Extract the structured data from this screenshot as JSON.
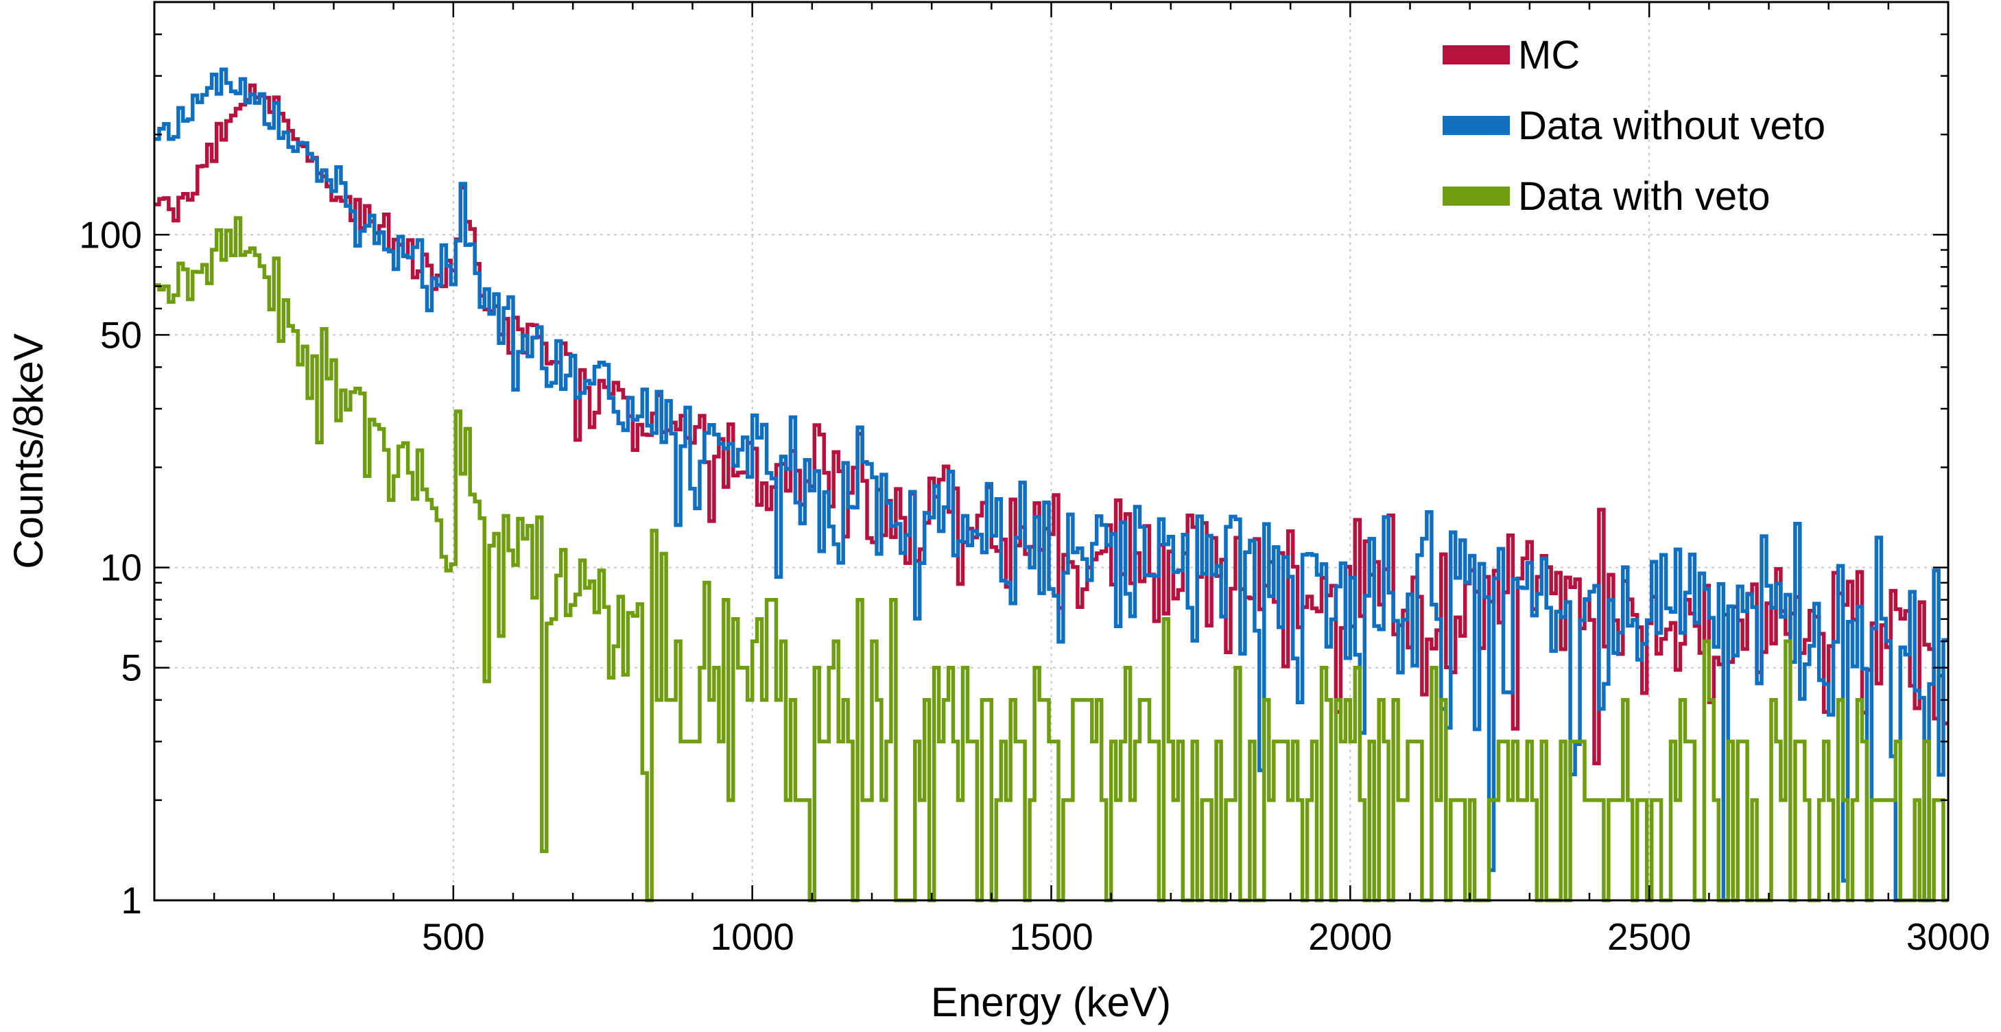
{
  "chart_data": {
    "type": "line",
    "style": "step histogram",
    "xlabel": "Energy (keV)",
    "ylabel": "Counts/8keV",
    "xlim": [
      0,
      3000
    ],
    "ylim": [
      1,
      500
    ],
    "y_scale": "log",
    "grid": true,
    "legend_position": "top-right",
    "bin_width_keV": 8,
    "x_ticks": [
      500,
      1000,
      1500,
      2000,
      2500,
      3000
    ],
    "x_tick_labels": [
      "500",
      "1000",
      "1500",
      "2000",
      "2500",
      "3000"
    ],
    "y_ticks": [
      1,
      5,
      10,
      50,
      100
    ],
    "y_tick_labels": [
      "1",
      "5",
      "10",
      "50",
      "100"
    ],
    "series": [
      {
        "name": "MC",
        "color": "#b5123e",
        "x": [
          0,
          50,
          100,
          150,
          200,
          250,
          300,
          350,
          400,
          450,
          500,
          515,
          550,
          600,
          700,
          800,
          900,
          1000,
          1100,
          1200,
          1300,
          1400,
          1500,
          1600,
          1700,
          1800,
          1900,
          2000,
          2200,
          2400,
          2600,
          2800,
          3000
        ],
        "y": [
          115,
          130,
          185,
          270,
          240,
          180,
          140,
          115,
          95,
          82,
          72,
          145,
          62,
          50,
          38,
          28,
          24,
          21,
          19,
          17,
          15,
          13.5,
          12,
          11,
          10,
          9.5,
          9,
          8.5,
          8,
          7.3,
          6.8,
          6.3,
          5.9
        ]
      },
      {
        "name": "Data without veto",
        "color": "#0f6fc0",
        "x": [
          0,
          30,
          60,
          100,
          130,
          150,
          200,
          250,
          300,
          350,
          400,
          450,
          500,
          515,
          550,
          600,
          700,
          800,
          900,
          1000,
          1100,
          1200,
          1300,
          1400,
          1500,
          1600,
          1700,
          1800,
          1900,
          2000,
          2200,
          2400,
          2600,
          2800,
          3000
        ],
        "y": [
          210,
          195,
          240,
          290,
          300,
          275,
          220,
          170,
          135,
          110,
          90,
          78,
          72,
          125,
          60,
          53,
          40,
          30,
          25,
          21,
          18,
          16,
          14,
          13,
          12,
          11,
          10,
          9.5,
          9,
          8.5,
          7.5,
          7,
          6.3,
          5.8,
          5.3
        ]
      },
      {
        "name": "Data with veto",
        "color": "#6e9e0f",
        "x": [
          0,
          30,
          60,
          100,
          130,
          150,
          200,
          250,
          300,
          350,
          400,
          450,
          500,
          515,
          550,
          600,
          700,
          800,
          900,
          1000,
          1100,
          1200,
          1300,
          1400,
          1500,
          1600,
          1700,
          1800,
          1900,
          2000,
          2200,
          2400,
          2600,
          2800,
          3000
        ],
        "y": [
          75,
          65,
          72,
          88,
          95,
          90,
          68,
          45,
          35,
          28,
          22,
          18,
          14.5,
          27,
          12,
          11,
          8.5,
          6.5,
          5.3,
          4.5,
          3.8,
          3.4,
          3.0,
          2.8,
          2.6,
          2.5,
          2.4,
          2.3,
          2.2,
          2.1,
          2.0,
          1.9,
          1.8,
          1.75,
          1.7
        ]
      }
    ]
  }
}
